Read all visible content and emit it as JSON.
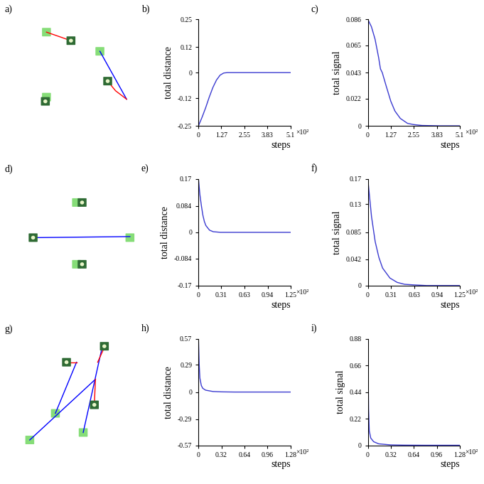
{
  "diagrams": [
    {
      "label": "a)"
    },
    {
      "label": "d)"
    },
    {
      "label": "g)"
    }
  ],
  "chart_data": [
    {
      "type": "line",
      "title": "b)",
      "xlabel": "steps",
      "ylabel": "total distance",
      "annotations": [
        "×10²"
      ],
      "color": "#3a3ad0",
      "x": [
        0,
        0.2,
        0.4,
        0.6,
        0.8,
        1.0,
        1.2,
        1.4,
        1.6,
        2.0,
        3.0,
        4.0,
        5.1
      ],
      "values": [
        -0.25,
        -0.21,
        -0.165,
        -0.115,
        -0.07,
        -0.035,
        -0.012,
        -0.002,
        0,
        0,
        0,
        0,
        0
      ],
      "xlim": [
        0,
        5.1
      ],
      "ylim": [
        -0.25,
        0.25
      ],
      "xticks": [
        0,
        1.27,
        2.55,
        3.83,
        5.1
      ],
      "yticks": [
        -0.25,
        -0.12,
        0,
        0.12,
        0.25
      ]
    },
    {
      "type": "line",
      "title": "c)",
      "xlabel": "steps",
      "ylabel": "total signal",
      "annotations": [
        "×10²"
      ],
      "color": "#3a3ad0",
      "x": [
        0,
        0.2,
        0.4,
        0.6,
        0.7,
        0.8,
        1.0,
        1.27,
        1.5,
        1.8,
        2.2,
        2.55,
        3.0,
        4.0,
        5.1
      ],
      "values": [
        0.086,
        0.08,
        0.07,
        0.055,
        0.046,
        0.043,
        0.033,
        0.02,
        0.012,
        0.006,
        0.002,
        0.001,
        0.0003,
        0,
        0
      ],
      "xlim": [
        0,
        5.1
      ],
      "ylim": [
        0,
        0.086
      ],
      "xticks": [
        0,
        1.27,
        2.55,
        3.83,
        5.1
      ],
      "yticks": [
        0,
        0.022,
        0.043,
        0.065,
        0.086
      ]
    },
    {
      "type": "line",
      "title": "e)",
      "xlabel": "steps",
      "ylabel": "total distance",
      "annotations": [
        "×10²"
      ],
      "color": "#3a3ad0",
      "x": [
        0,
        0.02,
        0.04,
        0.06,
        0.08,
        0.1,
        0.15,
        0.2,
        0.3,
        1.25
      ],
      "values": [
        0.17,
        0.12,
        0.085,
        0.055,
        0.035,
        0.022,
        0.007,
        0.002,
        0,
        0
      ],
      "xlim": [
        0,
        1.25
      ],
      "ylim": [
        -0.17,
        0.17
      ],
      "xticks": [
        0,
        0.31,
        0.63,
        0.94,
        1.25
      ],
      "yticks": [
        -0.17,
        -0.084,
        0,
        0.084,
        0.17
      ]
    },
    {
      "type": "line",
      "title": "f)",
      "xlabel": "steps",
      "ylabel": "total signal",
      "annotations": [
        "×10²"
      ],
      "color": "#3a3ad0",
      "x": [
        0,
        0.05,
        0.1,
        0.15,
        0.2,
        0.3,
        0.4,
        0.5,
        0.63,
        0.8,
        1.25
      ],
      "values": [
        0.17,
        0.11,
        0.07,
        0.045,
        0.028,
        0.012,
        0.005,
        0.002,
        0.001,
        0,
        0
      ],
      "xlim": [
        0,
        1.25
      ],
      "ylim": [
        0,
        0.17
      ],
      "xticks": [
        0,
        0.31,
        0.63,
        0.94,
        1.25
      ],
      "yticks": [
        0,
        0.042,
        0.085,
        0.13,
        0.17
      ]
    },
    {
      "type": "line",
      "title": "h)",
      "xlabel": "steps",
      "ylabel": "total distance",
      "annotations": [
        "×10²"
      ],
      "color": "#3a3ad0",
      "x": [
        0,
        0.01,
        0.02,
        0.04,
        0.06,
        0.1,
        0.2,
        0.32,
        0.5,
        1.28
      ],
      "values": [
        0.57,
        0.3,
        0.15,
        0.07,
        0.04,
        0.02,
        0.006,
        0.002,
        0,
        0
      ],
      "xlim": [
        0,
        1.28
      ],
      "ylim": [
        -0.57,
        0.57
      ],
      "xticks": [
        0,
        0.32,
        0.64,
        0.96,
        1.28
      ],
      "yticks": [
        -0.57,
        -0.29,
        0,
        0.29,
        0.57
      ]
    },
    {
      "type": "line",
      "title": "i)",
      "xlabel": "steps",
      "ylabel": "total signal",
      "annotations": [
        "×10²"
      ],
      "color": "#3a3ad0",
      "x": [
        0,
        0.01,
        0.02,
        0.04,
        0.08,
        0.15,
        0.32,
        0.5,
        0.8,
        1.28
      ],
      "values": [
        0.88,
        0.3,
        0.12,
        0.06,
        0.03,
        0.012,
        0.003,
        0.001,
        0,
        0
      ],
      "xlim": [
        0,
        1.28
      ],
      "ylim": [
        0,
        0.88
      ],
      "xticks": [
        0,
        0.32,
        0.64,
        0.96,
        1.28
      ],
      "yticks": [
        0,
        0.22,
        0.44,
        0.66,
        0.88
      ]
    }
  ]
}
